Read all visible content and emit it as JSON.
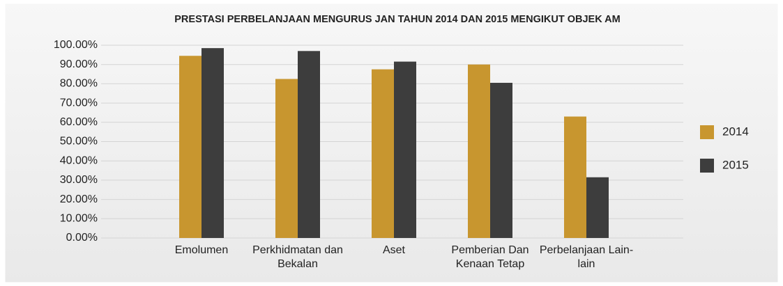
{
  "chart_data": {
    "type": "bar",
    "title": "PRESTASI PERBELANJAAN MENGURUS JAN TAHUN 2014 DAN 2015 MENGIKUT OBJEK AM",
    "categories": [
      "Emolumen",
      "Perkhidmatan dan Bekalan",
      "Aset",
      "Pemberian Dan Kenaan Tetap",
      "Perbelanjaan Lain-lain"
    ],
    "series": [
      {
        "name": "2014",
        "color": "#c8962f",
        "values": [
          94.5,
          82.5,
          87.5,
          90,
          63
        ]
      },
      {
        "name": "2015",
        "color": "#3d3d3d",
        "values": [
          98.5,
          97,
          91.5,
          80.5,
          31.5
        ]
      }
    ],
    "ylim": [
      0,
      100
    ],
    "yticks": [
      {
        "value": 0,
        "label": "0.00%"
      },
      {
        "value": 10,
        "label": "10.00%"
      },
      {
        "value": 20,
        "label": "20.00%"
      },
      {
        "value": 30,
        "label": "30.00%"
      },
      {
        "value": 40,
        "label": "40.00%"
      },
      {
        "value": 50,
        "label": "50.00%"
      },
      {
        "value": 60,
        "label": "60.00%"
      },
      {
        "value": 70,
        "label": "70.00%"
      },
      {
        "value": 80,
        "label": "80.00%"
      },
      {
        "value": 90,
        "label": "90.00%"
      },
      {
        "value": 100,
        "label": "100.00%"
      }
    ],
    "grid": true,
    "legend": "right"
  }
}
